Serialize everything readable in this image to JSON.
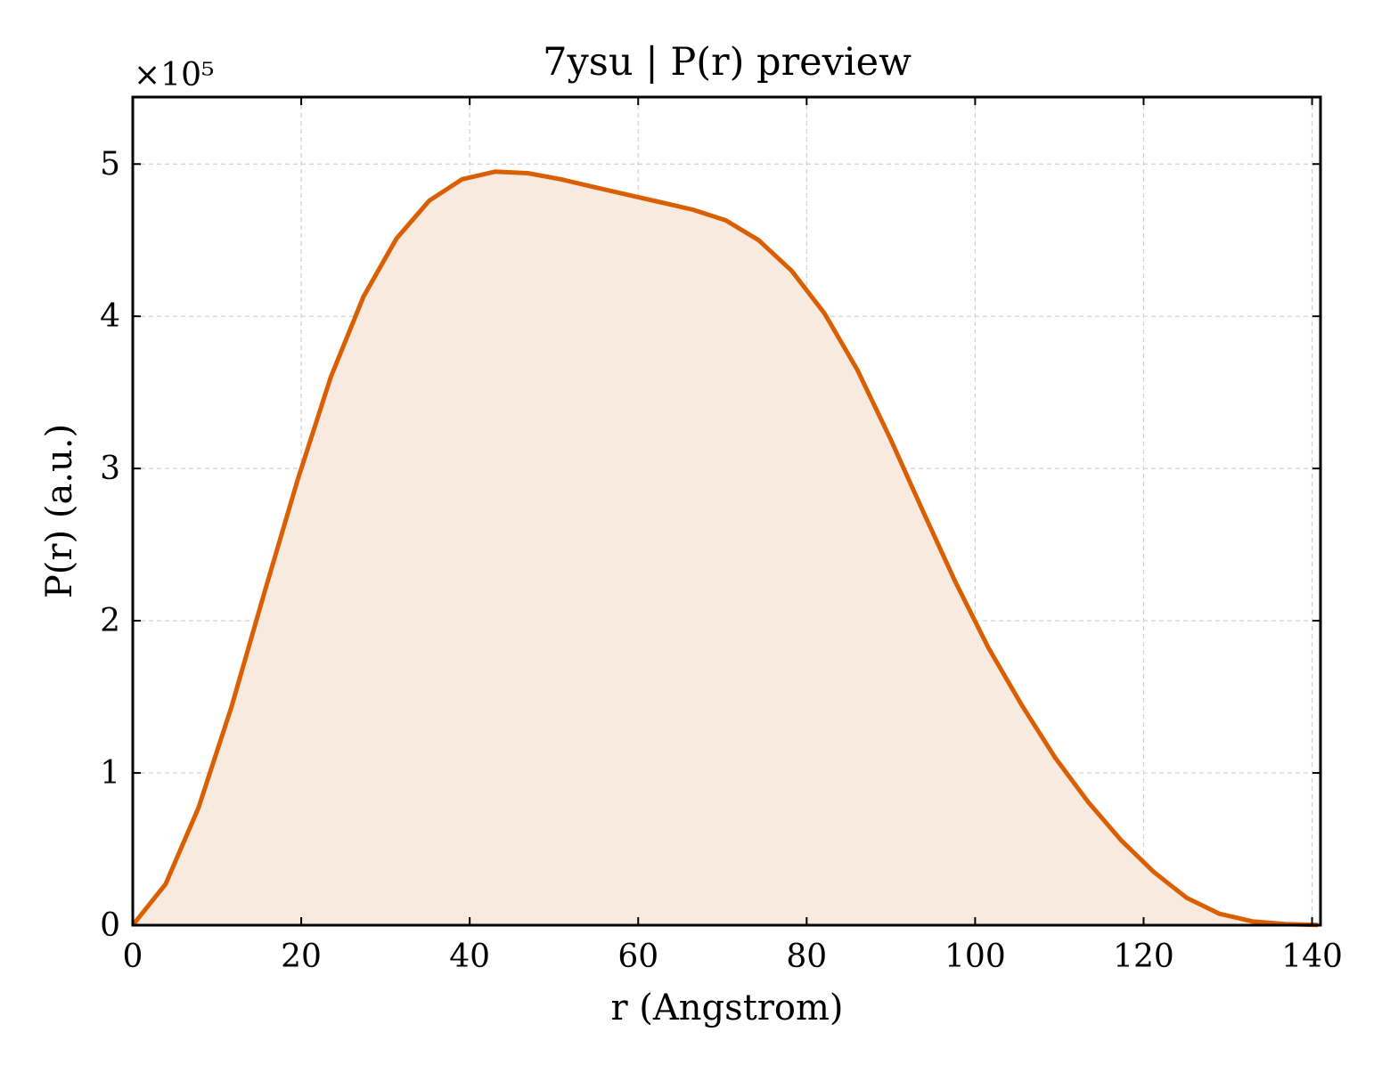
{
  "chart_data": {
    "type": "area",
    "title": "7ysu | P(r) preview",
    "xlabel": "r (Angstrom)",
    "ylabel": "P(r) (a.u.)",
    "y_multiplier_label": "×10⁵",
    "y_scale": 100000,
    "xlim": [
      0,
      141
    ],
    "ylim": [
      0,
      544000
    ],
    "xticks": [
      0,
      20,
      40,
      60,
      80,
      100,
      120,
      140
    ],
    "yticks": [
      0,
      100000,
      200000,
      300000,
      400000,
      500000
    ],
    "ytick_labels": [
      "0",
      "1",
      "2",
      "3",
      "4",
      "5"
    ],
    "grid": true,
    "line_color": "#d95f02",
    "fill_color": "#f9eae0",
    "series": [
      {
        "x": [
          0,
          3.9,
          7.8,
          11.7,
          15.6,
          19.6,
          23.5,
          27.4,
          31.3,
          35.2,
          39.1,
          43.0,
          46.9,
          50.8,
          54.7,
          58.6,
          62.6,
          66.5,
          70.4,
          74.3,
          78.2,
          82.1,
          86.0,
          89.9,
          93.8,
          97.7,
          101.6,
          105.6,
          109.5,
          113.4,
          117.3,
          121.2,
          125.1,
          129.0,
          132.9,
          136.8,
          140.7
        ],
        "y": [
          0,
          27000,
          77000,
          143000,
          218000,
          293000,
          360000,
          413000,
          451000,
          476000,
          490000,
          495000,
          494000,
          490000,
          485000,
          480000,
          475000,
          470000,
          463000,
          450000,
          430000,
          402000,
          365000,
          320000,
          272000,
          225000,
          182000,
          144000,
          110000,
          81000,
          56000,
          35000,
          18000,
          7500,
          2500,
          700,
          200
        ]
      }
    ]
  }
}
